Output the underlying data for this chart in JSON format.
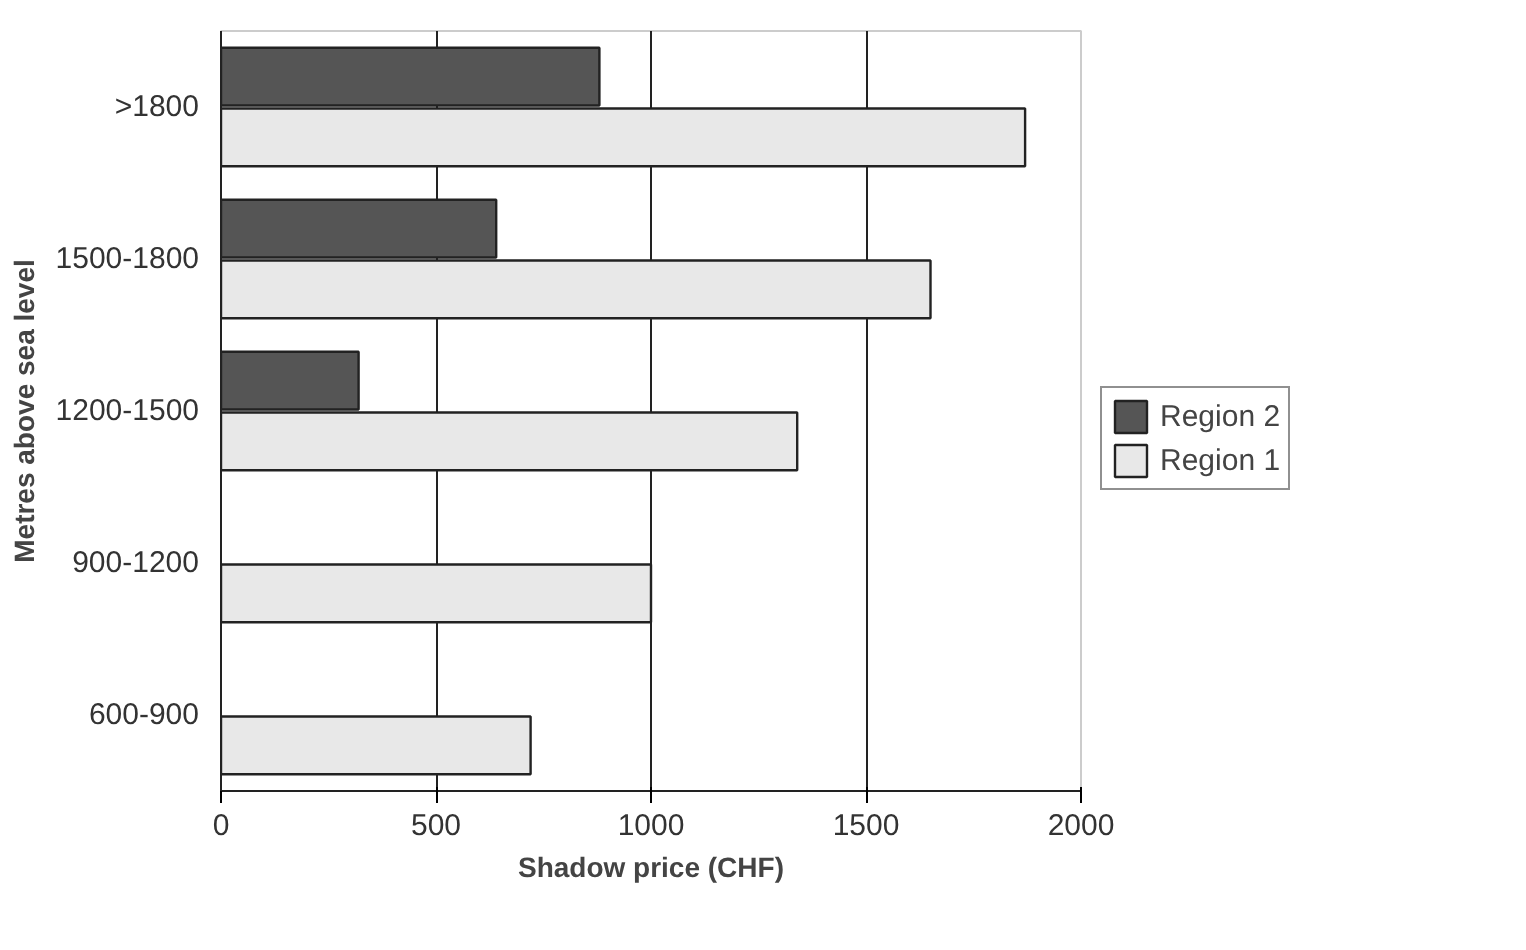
{
  "chart_data": {
    "type": "bar",
    "orientation": "horizontal",
    "xlabel": "Shadow price (CHF)",
    "ylabel": "Metres above sea level",
    "categories": [
      ">1800",
      "1500-1800",
      "1200-1500",
      "900-1200",
      "600-900"
    ],
    "series": [
      {
        "name": "Region 2",
        "color": "#555555",
        "values": [
          880,
          640,
          320,
          null,
          null
        ]
      },
      {
        "name": "Region 1",
        "color": "#e8e8e8",
        "values": [
          1870,
          1650,
          1340,
          1000,
          720
        ]
      }
    ],
    "xlim": [
      0,
      2000
    ],
    "xticks": [
      0,
      500,
      1000,
      1500,
      2000
    ],
    "grid": "x",
    "legend": "right"
  }
}
